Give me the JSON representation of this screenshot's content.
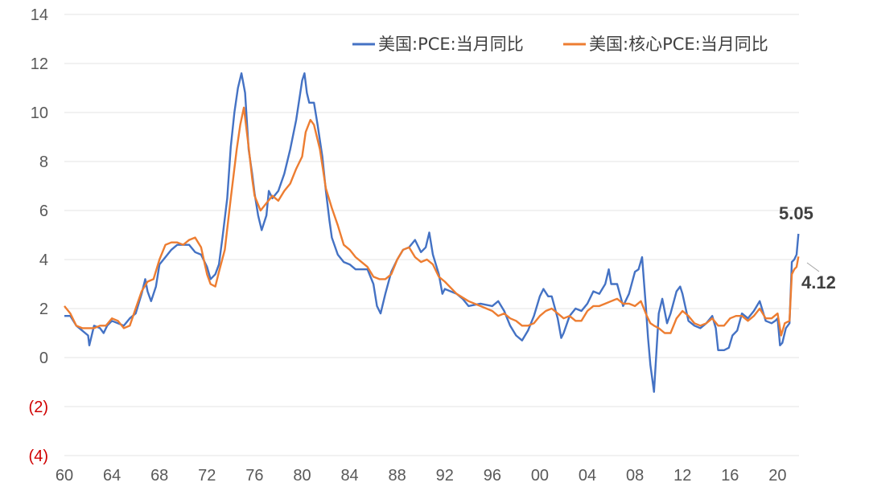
{
  "chart_data": {
    "type": "line",
    "x_range": [
      1960,
      2021.8
    ],
    "ylim": [
      -4,
      14
    ],
    "y_ticks": [
      {
        "value": 14,
        "label": "14"
      },
      {
        "value": 12,
        "label": "12"
      },
      {
        "value": 10,
        "label": "10"
      },
      {
        "value": 8,
        "label": "8"
      },
      {
        "value": 6,
        "label": "6"
      },
      {
        "value": 4,
        "label": "4"
      },
      {
        "value": 2,
        "label": "2"
      },
      {
        "value": 0,
        "label": "0"
      },
      {
        "value": -2,
        "label": "(2)"
      },
      {
        "value": -4,
        "label": "(4)"
      }
    ],
    "x_ticks": [
      {
        "value": 1960,
        "label": "60"
      },
      {
        "value": 1964,
        "label": "64"
      },
      {
        "value": 1968,
        "label": "68"
      },
      {
        "value": 1972,
        "label": "72"
      },
      {
        "value": 1976,
        "label": "76"
      },
      {
        "value": 1980,
        "label": "80"
      },
      {
        "value": 1984,
        "label": "84"
      },
      {
        "value": 1988,
        "label": "88"
      },
      {
        "value": 1992,
        "label": "92"
      },
      {
        "value": 1996,
        "label": "96"
      },
      {
        "value": 2000,
        "label": "00"
      },
      {
        "value": 2004,
        "label": "04"
      },
      {
        "value": 2008,
        "label": "08"
      },
      {
        "value": 2012,
        "label": "12"
      },
      {
        "value": 2016,
        "label": "16"
      },
      {
        "value": 2020,
        "label": "20"
      }
    ],
    "grid": true,
    "negative_tick_color": "#d00000",
    "legend_position": "top-right",
    "series": [
      {
        "name": "美国:PCE:当月同比",
        "color": "#4472c4",
        "points": [
          [
            1960,
            1.7
          ],
          [
            1960.5,
            1.7
          ],
          [
            1961,
            1.3
          ],
          [
            1961.5,
            1.1
          ],
          [
            1962,
            0.9
          ],
          [
            1962.1,
            0.5
          ],
          [
            1962.5,
            1.3
          ],
          [
            1963,
            1.2
          ],
          [
            1963.3,
            1.0
          ],
          [
            1963.6,
            1.3
          ],
          [
            1964,
            1.5
          ],
          [
            1964.5,
            1.4
          ],
          [
            1965,
            1.3
          ],
          [
            1965.5,
            1.6
          ],
          [
            1966,
            1.8
          ],
          [
            1966.5,
            2.6
          ],
          [
            1966.8,
            3.2
          ],
          [
            1967,
            2.7
          ],
          [
            1967.3,
            2.3
          ],
          [
            1967.7,
            2.9
          ],
          [
            1968,
            3.8
          ],
          [
            1968.5,
            4.1
          ],
          [
            1969,
            4.4
          ],
          [
            1969.5,
            4.6
          ],
          [
            1970,
            4.6
          ],
          [
            1970.5,
            4.6
          ],
          [
            1971,
            4.3
          ],
          [
            1971.5,
            4.2
          ],
          [
            1972,
            3.7
          ],
          [
            1972.3,
            3.2
          ],
          [
            1972.7,
            3.4
          ],
          [
            1973,
            3.8
          ],
          [
            1973.3,
            4.9
          ],
          [
            1973.7,
            6.5
          ],
          [
            1974,
            8.6
          ],
          [
            1974.3,
            10.0
          ],
          [
            1974.6,
            11.0
          ],
          [
            1974.9,
            11.6
          ],
          [
            1975.2,
            10.8
          ],
          [
            1975.5,
            8.5
          ],
          [
            1975.8,
            7.5
          ],
          [
            1976,
            6.7
          ],
          [
            1976.3,
            5.8
          ],
          [
            1976.6,
            5.2
          ],
          [
            1977,
            5.8
          ],
          [
            1977.2,
            6.8
          ],
          [
            1977.5,
            6.5
          ],
          [
            1978,
            6.8
          ],
          [
            1978.5,
            7.5
          ],
          [
            1979,
            8.5
          ],
          [
            1979.5,
            9.7
          ],
          [
            1980,
            11.3
          ],
          [
            1980.2,
            11.6
          ],
          [
            1980.4,
            10.8
          ],
          [
            1980.6,
            10.4
          ],
          [
            1981,
            10.4
          ],
          [
            1981.3,
            9.5
          ],
          [
            1981.7,
            8.2
          ],
          [
            1982,
            6.8
          ],
          [
            1982.3,
            5.6
          ],
          [
            1982.5,
            4.9
          ],
          [
            1983,
            4.2
          ],
          [
            1983.5,
            3.9
          ],
          [
            1984,
            3.8
          ],
          [
            1984.5,
            3.6
          ],
          [
            1985,
            3.6
          ],
          [
            1985.5,
            3.6
          ],
          [
            1986,
            3.0
          ],
          [
            1986.3,
            2.1
          ],
          [
            1986.6,
            1.8
          ],
          [
            1987,
            2.6
          ],
          [
            1987.5,
            3.5
          ],
          [
            1988,
            4.0
          ],
          [
            1988.5,
            4.4
          ],
          [
            1989,
            4.5
          ],
          [
            1989.5,
            4.8
          ],
          [
            1990,
            4.3
          ],
          [
            1990.4,
            4.5
          ],
          [
            1990.7,
            5.1
          ],
          [
            1991,
            4.2
          ],
          [
            1991.5,
            3.4
          ],
          [
            1991.8,
            2.6
          ],
          [
            1992,
            2.8
          ],
          [
            1993,
            2.6
          ],
          [
            1993.5,
            2.4
          ],
          [
            1994,
            2.1
          ],
          [
            1995,
            2.2
          ],
          [
            1996,
            2.1
          ],
          [
            1996.5,
            2.3
          ],
          [
            1997,
            1.9
          ],
          [
            1997.5,
            1.3
          ],
          [
            1998,
            0.9
          ],
          [
            1998.5,
            0.7
          ],
          [
            1999,
            1.1
          ],
          [
            1999.5,
            1.7
          ],
          [
            2000,
            2.5
          ],
          [
            2000.3,
            2.8
          ],
          [
            2000.7,
            2.5
          ],
          [
            2001,
            2.5
          ],
          [
            2001.5,
            1.6
          ],
          [
            2001.8,
            0.8
          ],
          [
            2002,
            1.0
          ],
          [
            2002.5,
            1.7
          ],
          [
            2003,
            2.0
          ],
          [
            2003.5,
            1.9
          ],
          [
            2004,
            2.2
          ],
          [
            2004.5,
            2.7
          ],
          [
            2005,
            2.6
          ],
          [
            2005.5,
            3.0
          ],
          [
            2005.8,
            3.6
          ],
          [
            2006,
            3.0
          ],
          [
            2006.5,
            3.0
          ],
          [
            2007,
            2.1
          ],
          [
            2007.5,
            2.6
          ],
          [
            2008,
            3.5
          ],
          [
            2008.3,
            3.6
          ],
          [
            2008.6,
            4.1
          ],
          [
            2008.9,
            2.2
          ],
          [
            2009.1,
            0.8
          ],
          [
            2009.3,
            -0.3
          ],
          [
            2009.6,
            -1.4
          ],
          [
            2010,
            1.8
          ],
          [
            2010.3,
            2.4
          ],
          [
            2010.7,
            1.4
          ],
          [
            2011,
            1.8
          ],
          [
            2011.5,
            2.7
          ],
          [
            2011.8,
            2.9
          ],
          [
            2012,
            2.6
          ],
          [
            2012.5,
            1.5
          ],
          [
            2013,
            1.3
          ],
          [
            2013.5,
            1.2
          ],
          [
            2014,
            1.4
          ],
          [
            2014.5,
            1.7
          ],
          [
            2014.8,
            1.2
          ],
          [
            2015,
            0.3
          ],
          [
            2015.5,
            0.3
          ],
          [
            2015.9,
            0.4
          ],
          [
            2016.2,
            0.9
          ],
          [
            2016.6,
            1.1
          ],
          [
            2017,
            1.8
          ],
          [
            2017.5,
            1.6
          ],
          [
            2018,
            1.9
          ],
          [
            2018.5,
            2.3
          ],
          [
            2019,
            1.5
          ],
          [
            2019.5,
            1.4
          ],
          [
            2019.8,
            1.5
          ],
          [
            2020,
            1.6
          ],
          [
            2020.2,
            0.5
          ],
          [
            2020.4,
            0.6
          ],
          [
            2020.7,
            1.2
          ],
          [
            2021,
            1.4
          ],
          [
            2021.2,
            3.9
          ],
          [
            2021.4,
            4.0
          ],
          [
            2021.6,
            4.2
          ],
          [
            2021.75,
            5.05
          ]
        ]
      },
      {
        "name": "美国:核心PCE:当月同比",
        "color": "#ed7d31",
        "points": [
          [
            1960,
            2.1
          ],
          [
            1960.5,
            1.8
          ],
          [
            1961,
            1.3
          ],
          [
            1961.5,
            1.2
          ],
          [
            1962,
            1.2
          ],
          [
            1962.5,
            1.2
          ],
          [
            1963,
            1.3
          ],
          [
            1963.5,
            1.3
          ],
          [
            1964,
            1.6
          ],
          [
            1964.5,
            1.5
          ],
          [
            1965,
            1.2
          ],
          [
            1965.5,
            1.3
          ],
          [
            1966,
            2.0
          ],
          [
            1966.5,
            2.7
          ],
          [
            1967,
            3.1
          ],
          [
            1967.5,
            3.2
          ],
          [
            1968,
            4.0
          ],
          [
            1968.5,
            4.6
          ],
          [
            1969,
            4.7
          ],
          [
            1969.5,
            4.7
          ],
          [
            1970,
            4.6
          ],
          [
            1970.5,
            4.8
          ],
          [
            1971,
            4.9
          ],
          [
            1971.5,
            4.5
          ],
          [
            1972,
            3.4
          ],
          [
            1972.3,
            3.0
          ],
          [
            1972.7,
            2.9
          ],
          [
            1973,
            3.5
          ],
          [
            1973.5,
            4.4
          ],
          [
            1974,
            6.5
          ],
          [
            1974.5,
            8.5
          ],
          [
            1974.8,
            9.5
          ],
          [
            1975.1,
            10.2
          ],
          [
            1975.5,
            8.6
          ],
          [
            1975.8,
            7.3
          ],
          [
            1976,
            6.6
          ],
          [
            1976.5,
            6.0
          ],
          [
            1977,
            6.3
          ],
          [
            1977.5,
            6.6
          ],
          [
            1978,
            6.4
          ],
          [
            1978.5,
            6.8
          ],
          [
            1979,
            7.1
          ],
          [
            1979.5,
            7.7
          ],
          [
            1980,
            8.2
          ],
          [
            1980.3,
            9.2
          ],
          [
            1980.7,
            9.7
          ],
          [
            1981,
            9.5
          ],
          [
            1981.5,
            8.5
          ],
          [
            1982,
            6.9
          ],
          [
            1982.5,
            6.1
          ],
          [
            1983,
            5.4
          ],
          [
            1983.5,
            4.6
          ],
          [
            1984,
            4.4
          ],
          [
            1984.5,
            4.1
          ],
          [
            1985,
            3.9
          ],
          [
            1985.5,
            3.7
          ],
          [
            1986,
            3.3
          ],
          [
            1986.5,
            3.2
          ],
          [
            1987,
            3.2
          ],
          [
            1987.5,
            3.4
          ],
          [
            1988,
            4.0
          ],
          [
            1988.5,
            4.4
          ],
          [
            1989,
            4.5
          ],
          [
            1989.5,
            4.1
          ],
          [
            1990,
            3.9
          ],
          [
            1990.5,
            4.0
          ],
          [
            1991,
            3.8
          ],
          [
            1991.5,
            3.3
          ],
          [
            1992,
            3.1
          ],
          [
            1993,
            2.6
          ],
          [
            1994,
            2.3
          ],
          [
            1995,
            2.1
          ],
          [
            1996,
            1.9
          ],
          [
            1996.5,
            1.7
          ],
          [
            1997,
            1.8
          ],
          [
            1997.5,
            1.6
          ],
          [
            1998,
            1.5
          ],
          [
            1998.5,
            1.3
          ],
          [
            1999,
            1.3
          ],
          [
            1999.5,
            1.4
          ],
          [
            2000,
            1.7
          ],
          [
            2000.5,
            1.9
          ],
          [
            2001,
            2.0
          ],
          [
            2001.5,
            1.8
          ],
          [
            2002,
            1.6
          ],
          [
            2002.5,
            1.7
          ],
          [
            2003,
            1.5
          ],
          [
            2003.5,
            1.5
          ],
          [
            2004,
            1.9
          ],
          [
            2004.5,
            2.1
          ],
          [
            2005,
            2.1
          ],
          [
            2005.5,
            2.2
          ],
          [
            2006,
            2.3
          ],
          [
            2006.5,
            2.4
          ],
          [
            2007,
            2.2
          ],
          [
            2007.5,
            2.2
          ],
          [
            2008,
            2.1
          ],
          [
            2008.5,
            2.3
          ],
          [
            2009,
            1.7
          ],
          [
            2009.3,
            1.4
          ],
          [
            2009.6,
            1.3
          ],
          [
            2010,
            1.2
          ],
          [
            2010.5,
            1.0
          ],
          [
            2011,
            1.0
          ],
          [
            2011.5,
            1.6
          ],
          [
            2012,
            1.9
          ],
          [
            2012.5,
            1.7
          ],
          [
            2013,
            1.4
          ],
          [
            2013.5,
            1.3
          ],
          [
            2014,
            1.4
          ],
          [
            2014.5,
            1.6
          ],
          [
            2015,
            1.3
          ],
          [
            2015.5,
            1.3
          ],
          [
            2016,
            1.6
          ],
          [
            2016.5,
            1.7
          ],
          [
            2017,
            1.7
          ],
          [
            2017.5,
            1.5
          ],
          [
            2018,
            1.7
          ],
          [
            2018.5,
            2.0
          ],
          [
            2019,
            1.6
          ],
          [
            2019.5,
            1.6
          ],
          [
            2020,
            1.8
          ],
          [
            2020.3,
            0.9
          ],
          [
            2020.6,
            1.4
          ],
          [
            2021,
            1.5
          ],
          [
            2021.2,
            3.4
          ],
          [
            2021.4,
            3.6
          ],
          [
            2021.6,
            3.7
          ],
          [
            2021.75,
            4.12
          ]
        ]
      }
    ],
    "annotations": [
      {
        "series": 0,
        "label": "5.05"
      },
      {
        "series": 1,
        "label": "4.12"
      }
    ]
  }
}
